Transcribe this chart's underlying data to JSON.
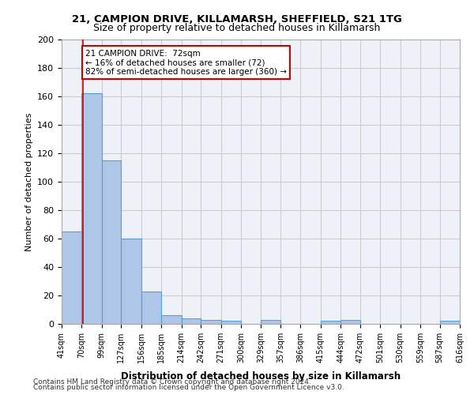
{
  "title1": "21, CAMPION DRIVE, KILLAMARSH, SHEFFIELD, S21 1TG",
  "title2": "Size of property relative to detached houses in Killamarsh",
  "xlabel": "Distribution of detached houses by size in Killamarsh",
  "ylabel": "Number of detached properties",
  "bins": [
    41,
    70,
    99,
    127,
    156,
    185,
    214,
    242,
    271,
    300,
    329,
    357,
    386,
    415,
    444,
    472,
    501,
    530,
    559,
    587,
    616
  ],
  "bar_heights": [
    65,
    162,
    115,
    60,
    23,
    6,
    4,
    3,
    2,
    0,
    3,
    0,
    0,
    2,
    3,
    0,
    0,
    0,
    0,
    2
  ],
  "bar_color": "#aec6e8",
  "bar_edge_color": "#5a9fd4",
  "subject_size": 72,
  "subject_bin_index": 1,
  "annotation_text": "21 CAMPION DRIVE:  72sqm\n← 16% of detached houses are smaller (72)\n82% of semi-detached houses are larger (360) →",
  "annotation_box_color": "#ffffff",
  "annotation_border_color": "#cc0000",
  "red_line_color": "#cc0000",
  "ylim": [
    0,
    200
  ],
  "yticks": [
    0,
    20,
    40,
    60,
    80,
    100,
    120,
    140,
    160,
    180,
    200
  ],
  "grid_color": "#cccccc",
  "background_color": "#eef2f8",
  "footer1": "Contains HM Land Registry data © Crown copyright and database right 2024.",
  "footer2": "Contains public sector information licensed under the Open Government Licence v3.0."
}
